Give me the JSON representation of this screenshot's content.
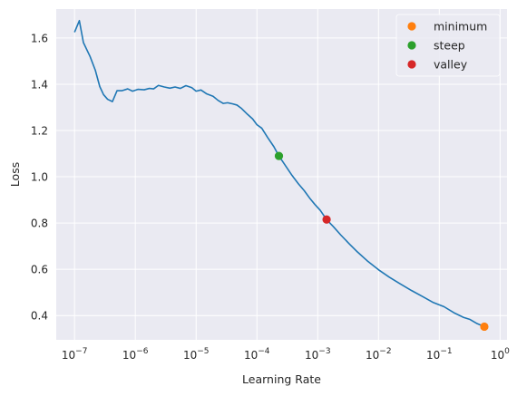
{
  "chart_data": {
    "type": "line",
    "xlabel": "Learning Rate",
    "ylabel": "Loss",
    "xscale": "log",
    "xlim": [
      5e-08,
      1.3
    ],
    "ylim": [
      0.295,
      1.725
    ],
    "grid": true,
    "legend_position": "top-right",
    "x_ticks": [
      {
        "value": 1e-07,
        "base": "10",
        "exp": "−7"
      },
      {
        "value": 1e-06,
        "base": "10",
        "exp": "−6"
      },
      {
        "value": 1e-05,
        "base": "10",
        "exp": "−5"
      },
      {
        "value": 0.0001,
        "base": "10",
        "exp": "−4"
      },
      {
        "value": 0.001,
        "base": "10",
        "exp": "−3"
      },
      {
        "value": 0.01,
        "base": "10",
        "exp": "−2"
      },
      {
        "value": 0.1,
        "base": "10",
        "exp": "−1"
      },
      {
        "value": 1,
        "base": "10",
        "exp": "0"
      }
    ],
    "y_ticks": [
      {
        "value": 0.4,
        "label": "0.4"
      },
      {
        "value": 0.6,
        "label": "0.6"
      },
      {
        "value": 0.8,
        "label": "0.8"
      },
      {
        "value": 1.0,
        "label": "1.0"
      },
      {
        "value": 1.2,
        "label": "1.2"
      },
      {
        "value": 1.4,
        "label": "1.4"
      },
      {
        "value": 1.6,
        "label": "1.6"
      }
    ],
    "series": [
      {
        "color": "#1f77b4",
        "points": [
          [
            1e-07,
            1.625
          ],
          [
            1.2e-07,
            1.675
          ],
          [
            1.4e-07,
            1.58
          ],
          [
            1.8e-07,
            1.52
          ],
          [
            2.2e-07,
            1.46
          ],
          [
            2.6e-07,
            1.39
          ],
          [
            3e-07,
            1.355
          ],
          [
            3.5e-07,
            1.335
          ],
          [
            4.2e-07,
            1.325
          ],
          [
            5e-07,
            1.372
          ],
          [
            6e-07,
            1.372
          ],
          [
            7.5e-07,
            1.38
          ],
          [
            9e-07,
            1.37
          ],
          [
            1.1e-06,
            1.378
          ],
          [
            1.4e-06,
            1.376
          ],
          [
            1.7e-06,
            1.382
          ],
          [
            2e-06,
            1.38
          ],
          [
            2.4e-06,
            1.395
          ],
          [
            3e-06,
            1.388
          ],
          [
            3.7e-06,
            1.383
          ],
          [
            4.5e-06,
            1.388
          ],
          [
            5.5e-06,
            1.382
          ],
          [
            6.8e-06,
            1.394
          ],
          [
            8.5e-06,
            1.385
          ],
          [
            1e-05,
            1.37
          ],
          [
            1.2e-05,
            1.375
          ],
          [
            1.5e-05,
            1.358
          ],
          [
            1.9e-05,
            1.348
          ],
          [
            2.3e-05,
            1.33
          ],
          [
            2.8e-05,
            1.317
          ],
          [
            3.3e-05,
            1.32
          ],
          [
            4e-05,
            1.315
          ],
          [
            4.7e-05,
            1.31
          ],
          [
            5.6e-05,
            1.295
          ],
          [
            7e-05,
            1.27
          ],
          [
            8.5e-05,
            1.25
          ],
          [
            0.0001,
            1.225
          ],
          [
            0.00012,
            1.21
          ],
          [
            0.00015,
            1.17
          ],
          [
            0.00019,
            1.13
          ],
          [
            0.00023,
            1.09
          ],
          [
            0.0003,
            1.045
          ],
          [
            0.00038,
            1.005
          ],
          [
            0.00048,
            0.97
          ],
          [
            0.0006,
            0.94
          ],
          [
            0.00075,
            0.905
          ],
          [
            0.0009,
            0.88
          ],
          [
            0.0011,
            0.855
          ],
          [
            0.0014,
            0.815
          ],
          [
            0.0018,
            0.785
          ],
          [
            0.0024,
            0.748
          ],
          [
            0.0033,
            0.71
          ],
          [
            0.0045,
            0.675
          ],
          [
            0.0065,
            0.637
          ],
          [
            0.01,
            0.598
          ],
          [
            0.015,
            0.566
          ],
          [
            0.023,
            0.536
          ],
          [
            0.035,
            0.508
          ],
          [
            0.055,
            0.48
          ],
          [
            0.08,
            0.456
          ],
          [
            0.12,
            0.438
          ],
          [
            0.18,
            0.41
          ],
          [
            0.25,
            0.392
          ],
          [
            0.32,
            0.383
          ],
          [
            0.42,
            0.365
          ],
          [
            0.55,
            0.352
          ]
        ]
      }
    ],
    "markers": [
      {
        "name": "minimum",
        "color": "#ff7f0e",
        "x": 0.55,
        "y": 0.352
      },
      {
        "name": "steep",
        "color": "#2ca02c",
        "x": 0.00023,
        "y": 1.09
      },
      {
        "name": "valley",
        "color": "#d62728",
        "x": 0.0014,
        "y": 0.815
      }
    ]
  }
}
